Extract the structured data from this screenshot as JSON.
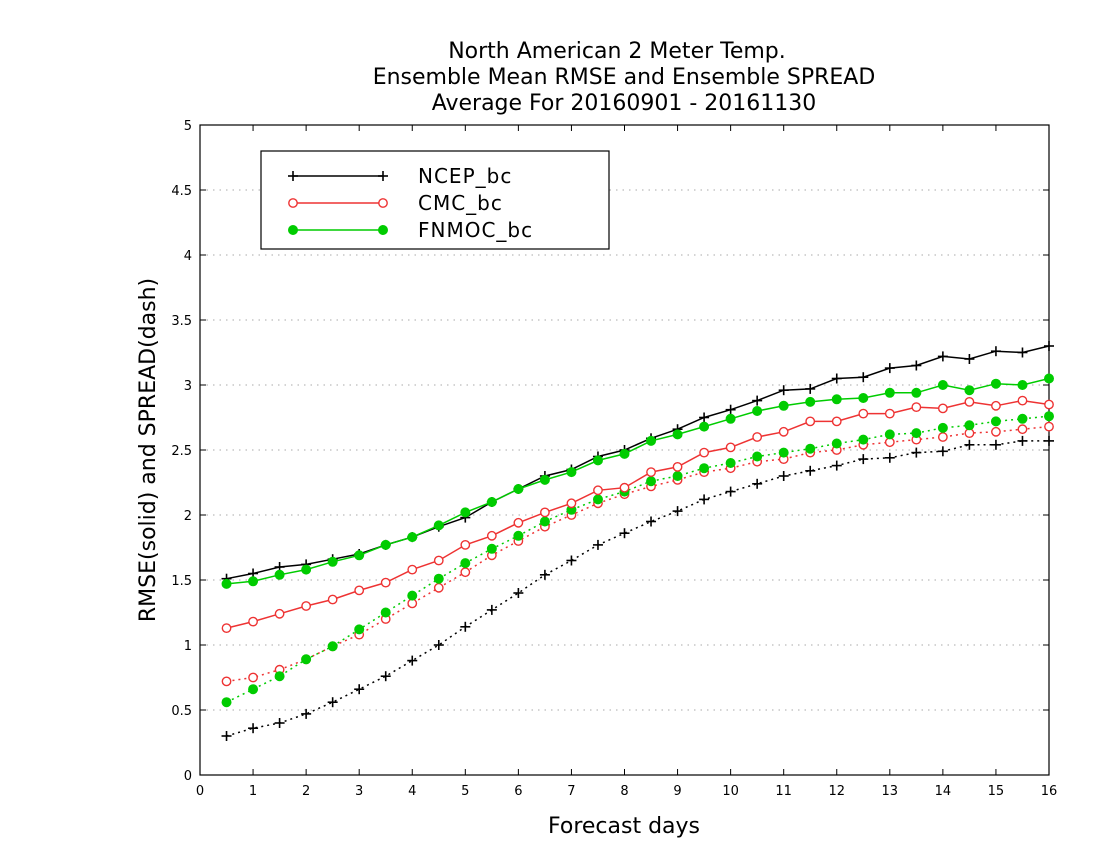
{
  "chart_data": {
    "type": "line",
    "title_lines": [
      "North American 2 Meter Temp.",
      "Ensemble Mean RMSE and Ensemble SPREAD",
      "Average For 20160901 - 20161130"
    ],
    "xlabel": "Forecast days",
    "ylabel": "RMSE(solid) and SPREAD(dash)",
    "xlim": [
      0,
      16
    ],
    "ylim": [
      0,
      5
    ],
    "xticks": [
      "0",
      "1",
      "2",
      "3",
      "4",
      "5",
      "6",
      "7",
      "8",
      "9",
      "10",
      "11",
      "12",
      "13",
      "14",
      "15",
      "16"
    ],
    "yticks": [
      "0",
      "0.5",
      "1",
      "1.5",
      "2",
      "2.5",
      "3",
      "3.5",
      "4",
      "4.5",
      "5"
    ],
    "grid": "horizontal dotted",
    "legend_position": "top-left",
    "x": [
      0.5,
      1,
      1.5,
      2,
      2.5,
      3,
      3.5,
      4,
      4.5,
      5,
      5.5,
      6,
      6.5,
      7,
      7.5,
      8,
      8.5,
      9,
      9.5,
      10,
      10.5,
      11,
      11.5,
      12,
      12.5,
      13,
      13.5,
      14,
      14.5,
      15,
      15.5,
      16
    ],
    "series": [
      {
        "name": "NCEP_bc",
        "color": "#000000",
        "marker": "plus",
        "rmse": [
          1.51,
          1.55,
          1.6,
          1.62,
          1.66,
          1.7,
          1.77,
          1.83,
          1.91,
          1.98,
          2.1,
          2.2,
          2.3,
          2.35,
          2.45,
          2.5,
          2.59,
          2.66,
          2.75,
          2.81,
          2.88,
          2.96,
          2.97,
          3.05,
          3.06,
          3.13,
          3.15,
          3.22,
          3.2,
          3.26,
          3.25,
          3.3
        ],
        "spread": [
          0.3,
          0.36,
          0.4,
          0.47,
          0.56,
          0.66,
          0.76,
          0.88,
          1.0,
          1.14,
          1.27,
          1.4,
          1.54,
          1.65,
          1.77,
          1.86,
          1.95,
          2.03,
          2.12,
          2.18,
          2.24,
          2.3,
          2.34,
          2.38,
          2.43,
          2.44,
          2.48,
          2.49,
          2.54,
          2.54,
          2.57,
          2.57
        ]
      },
      {
        "name": "CMC_bc",
        "color": "#ee3333",
        "marker": "open-circle",
        "rmse": [
          1.13,
          1.18,
          1.24,
          1.3,
          1.35,
          1.42,
          1.48,
          1.58,
          1.65,
          1.77,
          1.84,
          1.94,
          2.02,
          2.09,
          2.19,
          2.21,
          2.33,
          2.37,
          2.48,
          2.52,
          2.6,
          2.64,
          2.72,
          2.72,
          2.78,
          2.78,
          2.83,
          2.82,
          2.87,
          2.84,
          2.88,
          2.85
        ],
        "spread": [
          0.72,
          0.75,
          0.81,
          0.89,
          0.99,
          1.08,
          1.2,
          1.32,
          1.44,
          1.56,
          1.69,
          1.8,
          1.91,
          2.0,
          2.09,
          2.16,
          2.22,
          2.27,
          2.33,
          2.36,
          2.41,
          2.43,
          2.48,
          2.5,
          2.54,
          2.56,
          2.58,
          2.6,
          2.63,
          2.64,
          2.66,
          2.68
        ]
      },
      {
        "name": "FNMOC_bc",
        "color": "#00cc00",
        "marker": "filled-circle",
        "rmse": [
          1.47,
          1.49,
          1.54,
          1.58,
          1.64,
          1.69,
          1.77,
          1.83,
          1.92,
          2.02,
          2.1,
          2.2,
          2.27,
          2.33,
          2.42,
          2.47,
          2.57,
          2.62,
          2.68,
          2.74,
          2.8,
          2.84,
          2.87,
          2.89,
          2.9,
          2.94,
          2.94,
          3.0,
          2.96,
          3.01,
          3.0,
          3.05
        ],
        "spread": [
          0.56,
          0.66,
          0.76,
          0.89,
          0.99,
          1.12,
          1.25,
          1.38,
          1.51,
          1.63,
          1.74,
          1.84,
          1.95,
          2.04,
          2.12,
          2.18,
          2.26,
          2.3,
          2.36,
          2.4,
          2.45,
          2.48,
          2.51,
          2.55,
          2.58,
          2.62,
          2.63,
          2.67,
          2.69,
          2.72,
          2.74,
          2.76
        ]
      }
    ]
  }
}
